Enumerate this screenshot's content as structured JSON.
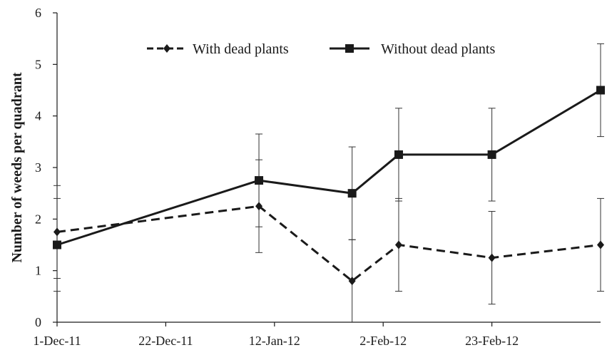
{
  "chart_data": {
    "type": "line",
    "title": "",
    "xlabel": "",
    "ylabel": "Number of weeds per quadrant",
    "x_type": "date",
    "xlim": [
      "2011-12-01",
      "2012-03-15"
    ],
    "ylim": [
      0,
      6
    ],
    "yticks": [
      0,
      1,
      2,
      3,
      4,
      5,
      6
    ],
    "xticks": [
      {
        "value": "2011-12-01",
        "label": "1-Dec-11"
      },
      {
        "value": "2011-12-22",
        "label": "22-Dec-11"
      },
      {
        "value": "2012-01-12",
        "label": "12-Jan-12"
      },
      {
        "value": "2012-02-02",
        "label": "2-Feb-12"
      },
      {
        "value": "2012-02-23",
        "label": "23-Feb-12"
      }
    ],
    "x": [
      "2011-12-01",
      "2012-01-09",
      "2012-01-27",
      "2012-02-05",
      "2012-02-23",
      "2012-03-15"
    ],
    "grid": false,
    "legend_position": "top-right",
    "series": [
      {
        "name": "With dead plants",
        "style": "dashed",
        "marker": "diamond",
        "color": "#1a1a1a",
        "values": [
          1.75,
          2.25,
          0.8,
          1.5,
          1.25,
          1.5
        ],
        "error": [
          0.9,
          0.9,
          0.8,
          0.9,
          0.9,
          0.9
        ]
      },
      {
        "name": "Without dead plants",
        "style": "solid",
        "marker": "square",
        "color": "#1a1a1a",
        "values": [
          1.5,
          2.75,
          2.5,
          3.25,
          3.25,
          4.5
        ],
        "error": [
          0.9,
          0.9,
          0.9,
          0.9,
          0.9,
          0.9
        ]
      }
    ]
  }
}
